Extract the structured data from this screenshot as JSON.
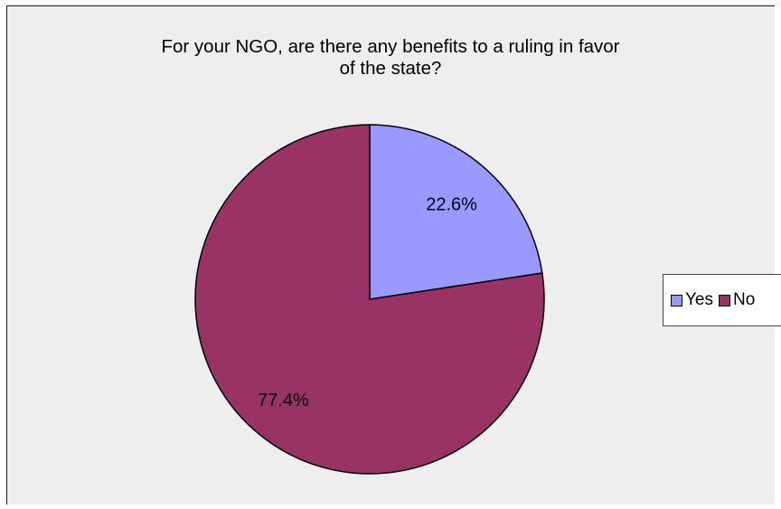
{
  "chart_data": {
    "type": "pie",
    "title": "For your NGO, are there any benefits to a ruling in favor of the state?",
    "title_lines": [
      "For your NGO, are there any benefits to a ruling in favor",
      "of the state?"
    ],
    "slices": [
      {
        "label": "Yes",
        "value": 22.6,
        "display": "22.6%",
        "color": "#9999ff"
      },
      {
        "label": "No",
        "value": 77.4,
        "display": "77.4%",
        "color": "#993366"
      }
    ],
    "legend_position": "right"
  }
}
